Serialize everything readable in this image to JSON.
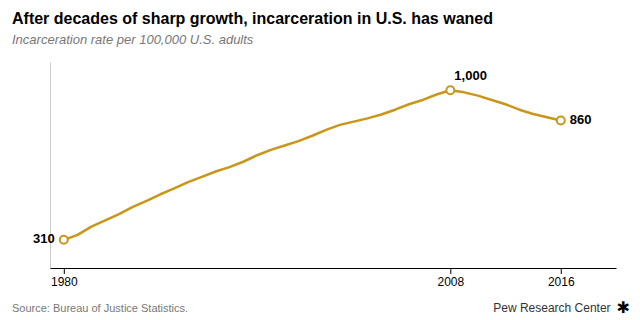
{
  "chart_data": {
    "type": "line",
    "title": "After decades of sharp growth, incarceration in U.S. has waned",
    "subtitle": "Incarceration rate per 100,000 U.S. adults",
    "source": "Source: Bureau of Justice Statistics.",
    "credit": "Pew Research Center",
    "logo": "✱",
    "x": [
      1980,
      1981,
      1982,
      1983,
      1984,
      1985,
      1986,
      1987,
      1988,
      1989,
      1990,
      1991,
      1992,
      1993,
      1994,
      1995,
      1996,
      1997,
      1998,
      1999,
      2000,
      2001,
      2002,
      2003,
      2004,
      2005,
      2006,
      2007,
      2008,
      2009,
      2010,
      2011,
      2012,
      2013,
      2014,
      2015,
      2016
    ],
    "values": [
      310,
      333,
      371,
      400,
      428,
      462,
      490,
      520,
      547,
      576,
      600,
      625,
      645,
      670,
      700,
      725,
      745,
      765,
      790,
      817,
      840,
      855,
      870,
      888,
      910,
      935,
      955,
      980,
      1000,
      990,
      975,
      955,
      935,
      910,
      890,
      875,
      860
    ],
    "color": "#C9961A",
    "annotations": [
      {
        "x": 1980,
        "y": 310,
        "text": "310"
      },
      {
        "x": 2008,
        "y": 1000,
        "text": "1,000"
      },
      {
        "x": 2016,
        "y": 860,
        "text": "860"
      }
    ],
    "xlim": [
      1979,
      2020
    ],
    "xticks": [
      1980,
      2008,
      2016
    ],
    "ylim": [
      180,
      1130
    ],
    "yticks": [],
    "tick_labels": "x",
    "grid": false
  }
}
